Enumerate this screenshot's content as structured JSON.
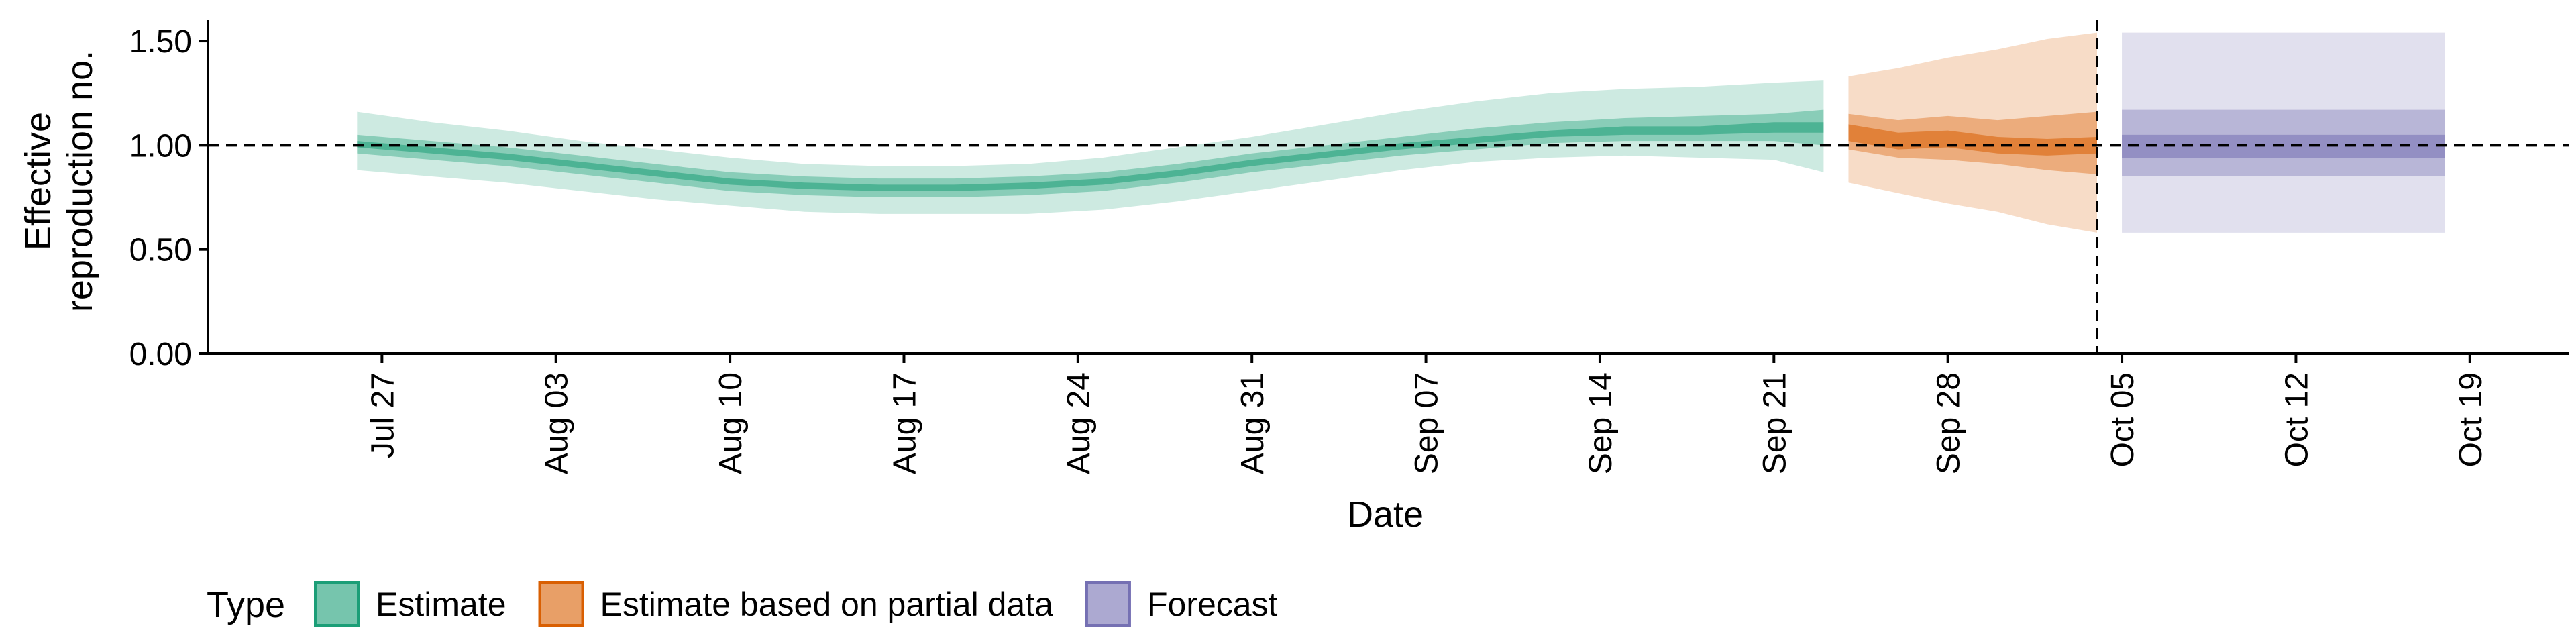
{
  "chart_data": {
    "type": "area",
    "xlabel": "Date",
    "ylabel_lines": [
      "Effective",
      "reproduction no."
    ],
    "ylim": [
      0,
      1.6
    ],
    "yticks": [
      {
        "value": 0.0,
        "label": "0.00"
      },
      {
        "value": 0.5,
        "label": "0.50"
      },
      {
        "value": 1.0,
        "label": "1.00"
      },
      {
        "value": 1.5,
        "label": "1.50"
      }
    ],
    "xlim": [
      "2020-07-20",
      "2020-10-23"
    ],
    "xticks": [
      {
        "date": "2020-07-27",
        "label": "Jul 27"
      },
      {
        "date": "2020-08-03",
        "label": "Aug 03"
      },
      {
        "date": "2020-08-10",
        "label": "Aug 10"
      },
      {
        "date": "2020-08-17",
        "label": "Aug 17"
      },
      {
        "date": "2020-08-24",
        "label": "Aug 24"
      },
      {
        "date": "2020-08-31",
        "label": "Aug 31"
      },
      {
        "date": "2020-09-07",
        "label": "Sep 07"
      },
      {
        "date": "2020-09-14",
        "label": "Sep 14"
      },
      {
        "date": "2020-09-21",
        "label": "Sep 21"
      },
      {
        "date": "2020-09-28",
        "label": "Sep 28"
      },
      {
        "date": "2020-10-05",
        "label": "Oct 05"
      },
      {
        "date": "2020-10-12",
        "label": "Oct 12"
      },
      {
        "date": "2020-10-19",
        "label": "Oct 19"
      }
    ],
    "reference_line_y": 1.0,
    "forecast_start_line_date": "2020-10-04",
    "grid": false,
    "legend_title": "Type",
    "legend_position": "bottom-left",
    "series": [
      {
        "name": "Estimate",
        "color": "#1b9e77",
        "x": [
          "2020-07-26",
          "2020-07-29",
          "2020-08-01",
          "2020-08-04",
          "2020-08-07",
          "2020-08-10",
          "2020-08-13",
          "2020-08-16",
          "2020-08-19",
          "2020-08-22",
          "2020-08-25",
          "2020-08-28",
          "2020-08-31",
          "2020-09-03",
          "2020-09-06",
          "2020-09-09",
          "2020-09-12",
          "2020-09-15",
          "2020-09-18",
          "2020-09-21",
          "2020-09-23"
        ],
        "median": [
          1.0,
          0.97,
          0.94,
          0.9,
          0.86,
          0.82,
          0.8,
          0.79,
          0.79,
          0.8,
          0.82,
          0.86,
          0.91,
          0.95,
          0.99,
          1.02,
          1.05,
          1.07,
          1.07,
          1.08,
          1.08
        ],
        "lower_90": [
          0.88,
          0.85,
          0.82,
          0.78,
          0.74,
          0.71,
          0.68,
          0.67,
          0.67,
          0.67,
          0.69,
          0.73,
          0.78,
          0.83,
          0.88,
          0.92,
          0.94,
          0.95,
          0.94,
          0.93,
          0.87
        ],
        "upper_90": [
          1.16,
          1.11,
          1.07,
          1.02,
          0.98,
          0.94,
          0.91,
          0.9,
          0.9,
          0.91,
          0.94,
          0.99,
          1.04,
          1.1,
          1.16,
          1.21,
          1.25,
          1.27,
          1.28,
          1.3,
          1.31
        ],
        "lower_50": [
          0.96,
          0.93,
          0.9,
          0.86,
          0.82,
          0.78,
          0.76,
          0.75,
          0.75,
          0.76,
          0.78,
          0.82,
          0.87,
          0.91,
          0.95,
          0.98,
          1.01,
          1.02,
          1.02,
          1.02,
          1.0
        ],
        "upper_50": [
          1.05,
          1.02,
          0.99,
          0.95,
          0.91,
          0.87,
          0.85,
          0.84,
          0.84,
          0.85,
          0.87,
          0.91,
          0.96,
          1.0,
          1.04,
          1.08,
          1.11,
          1.13,
          1.14,
          1.15,
          1.17
        ],
        "lower_20": [
          0.99,
          0.96,
          0.93,
          0.89,
          0.85,
          0.81,
          0.79,
          0.78,
          0.78,
          0.79,
          0.81,
          0.85,
          0.9,
          0.94,
          0.98,
          1.01,
          1.04,
          1.05,
          1.05,
          1.06,
          1.06
        ],
        "upper_20": [
          1.02,
          0.99,
          0.96,
          0.92,
          0.88,
          0.84,
          0.82,
          0.81,
          0.81,
          0.82,
          0.84,
          0.88,
          0.93,
          0.97,
          1.01,
          1.04,
          1.07,
          1.09,
          1.09,
          1.11,
          1.11
        ]
      },
      {
        "name": "Estimate based on partial data",
        "color": "#d95f02",
        "x": [
          "2020-09-24",
          "2020-09-26",
          "2020-09-28",
          "2020-09-30",
          "2020-10-02",
          "2020-10-04"
        ],
        "median": [
          1.06,
          1.02,
          1.03,
          1.0,
          0.99,
          1.0
        ],
        "lower_90": [
          0.82,
          0.77,
          0.72,
          0.68,
          0.62,
          0.58
        ],
        "upper_90": [
          1.33,
          1.37,
          1.42,
          1.46,
          1.51,
          1.54
        ],
        "lower_50": [
          0.98,
          0.94,
          0.93,
          0.91,
          0.88,
          0.86
        ],
        "upper_50": [
          1.15,
          1.12,
          1.14,
          1.12,
          1.14,
          1.16
        ],
        "lower_20": [
          1.02,
          0.98,
          0.99,
          0.96,
          0.95,
          0.96
        ],
        "upper_20": [
          1.1,
          1.06,
          1.07,
          1.04,
          1.03,
          1.04
        ]
      },
      {
        "name": "Forecast",
        "color": "#7570b3",
        "x": [
          "2020-10-05",
          "2020-10-18"
        ],
        "median": [
          1.0,
          1.0
        ],
        "lower_90": [
          0.58,
          0.58
        ],
        "upper_90": [
          1.54,
          1.54
        ],
        "lower_50": [
          0.85,
          0.85
        ],
        "upper_50": [
          1.17,
          1.17
        ],
        "lower_20": [
          0.94,
          0.94
        ],
        "upper_20": [
          1.05,
          1.05
        ]
      }
    ]
  }
}
